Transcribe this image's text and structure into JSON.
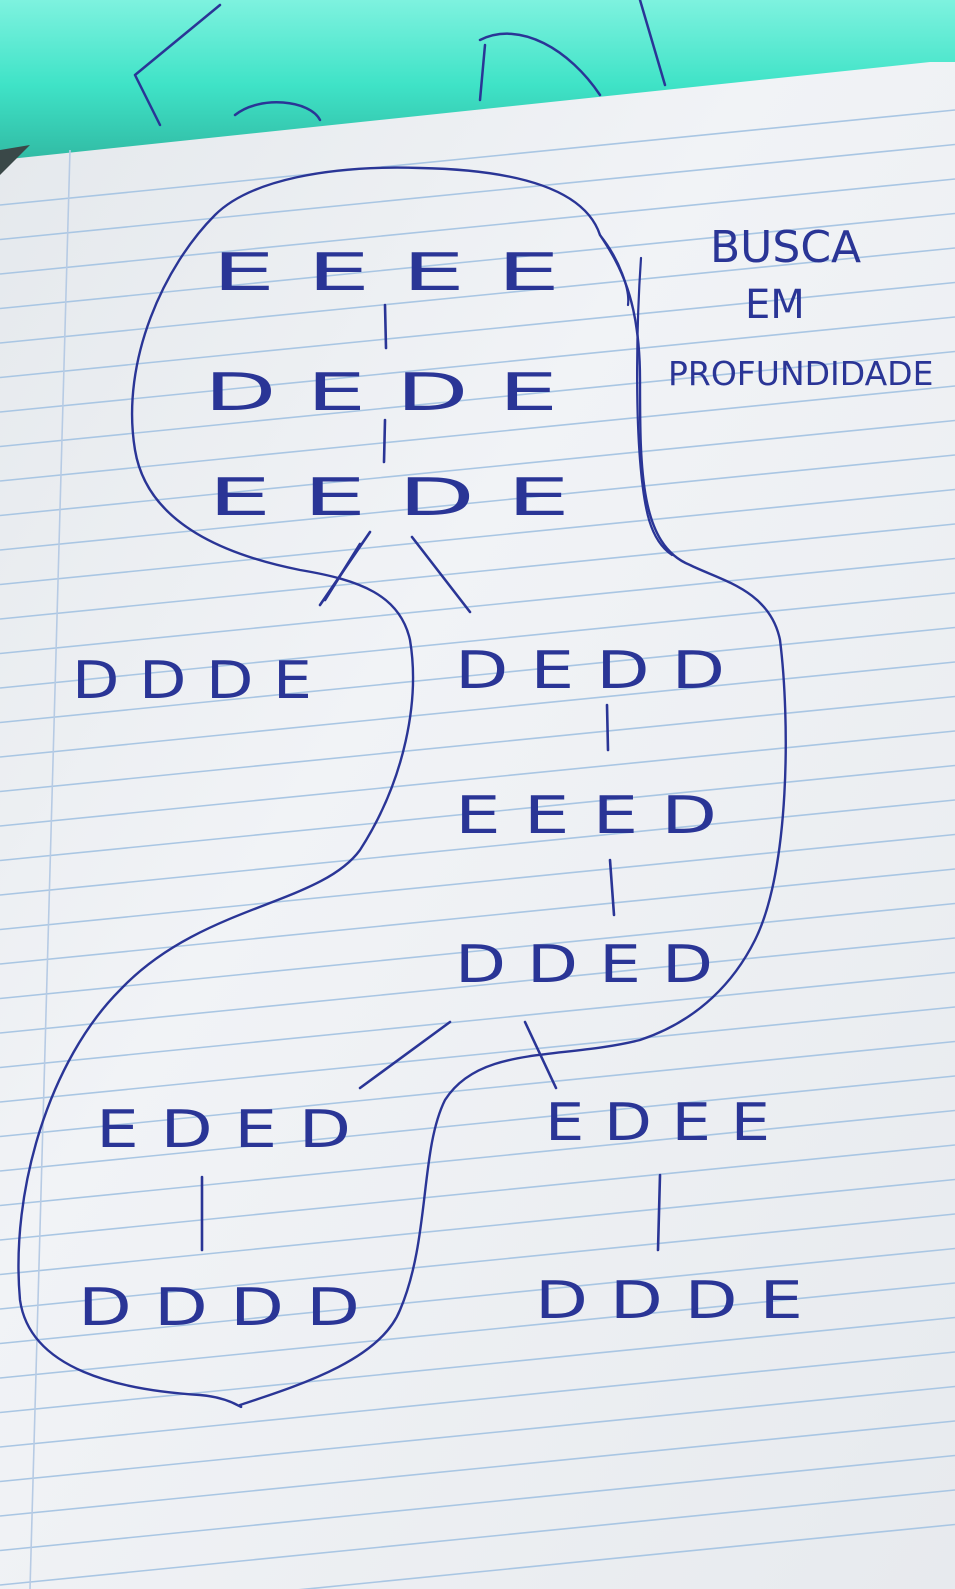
{
  "title": {
    "line1": "BUSCA",
    "line2": "EM",
    "line3": "PROFUNDIDADE"
  },
  "nodes": {
    "n1": "E E E E",
    "n2": "D E D E",
    "n3": "E E D E",
    "n4": "D D D E",
    "n5": "D E D D",
    "n6": "E E E D",
    "n7": "D D E D",
    "n8": "E D E D",
    "n9": "E D E E",
    "n10": "D D D D",
    "n11": "D D D E"
  },
  "colors": {
    "ink": "#2a3596",
    "paper": "#eef1f4",
    "rule_lines": "#a9c6e3",
    "margin_line": "#b7cbe4",
    "top_green": "#3fe3c7"
  }
}
